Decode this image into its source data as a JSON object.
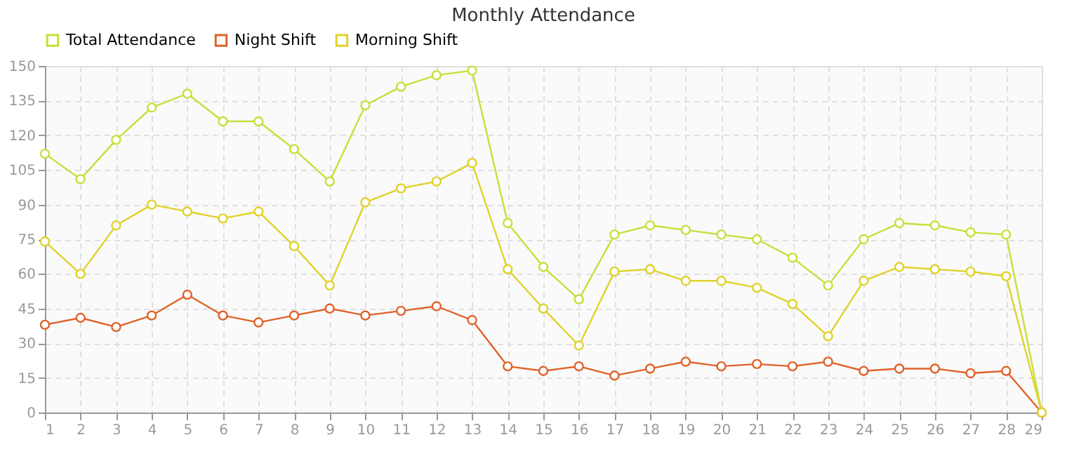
{
  "chart_data": {
    "type": "line",
    "title": "Monthly Attendance",
    "x": [
      1,
      2,
      3,
      4,
      5,
      6,
      7,
      8,
      9,
      10,
      11,
      12,
      13,
      14,
      15,
      16,
      17,
      18,
      19,
      20,
      21,
      22,
      23,
      24,
      25,
      26,
      27,
      28,
      29
    ],
    "series": [
      {
        "name": "Total Attendance",
        "color": "#c5e03a",
        "values": [
          112,
          101,
          118,
          132,
          138,
          126,
          126,
          114,
          100,
          133,
          141,
          146,
          148,
          82,
          63,
          49,
          77,
          81,
          79,
          77,
          75,
          67,
          55,
          75,
          82,
          81,
          78,
          77,
          0
        ]
      },
      {
        "name": "Night Shift",
        "color": "#e0622a",
        "values": [
          38,
          41,
          37,
          42,
          51,
          42,
          39,
          42,
          45,
          42,
          44,
          46,
          40,
          20,
          18,
          20,
          16,
          19,
          22,
          20,
          21,
          20,
          22,
          18,
          19,
          19,
          17,
          18,
          0
        ]
      },
      {
        "name": "Morning Shift",
        "color": "#e0d22a",
        "values": [
          74,
          60,
          81,
          90,
          87,
          84,
          87,
          72,
          55,
          91,
          97,
          100,
          108,
          62,
          45,
          29,
          61,
          62,
          57,
          57,
          54,
          47,
          33,
          57,
          63,
          62,
          61,
          59,
          0
        ]
      }
    ],
    "xlim": [
      1,
      29
    ],
    "xticks": [
      1,
      2,
      3,
      4,
      5,
      6,
      7,
      8,
      9,
      10,
      11,
      12,
      13,
      14,
      15,
      16,
      17,
      18,
      19,
      20,
      21,
      22,
      23,
      24,
      25,
      26,
      27,
      28,
      29
    ],
    "ylim": [
      0,
      150
    ],
    "yticks": [
      0,
      15,
      30,
      45,
      60,
      75,
      90,
      105,
      120,
      135,
      150
    ],
    "grid": true,
    "legend": "top left",
    "marker": "circle",
    "line_style": "solid"
  }
}
